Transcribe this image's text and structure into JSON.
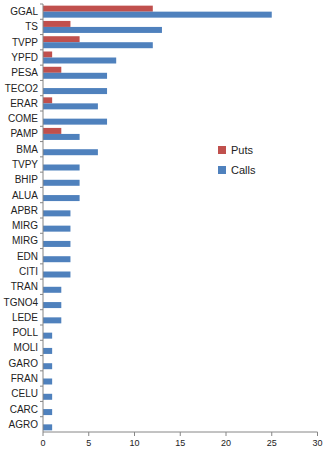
{
  "chart_data": {
    "type": "bar",
    "orientation": "horizontal",
    "categories": [
      "GGAL",
      "TS",
      "TVPP",
      "YPFD",
      "PESA",
      "TECO2",
      "ERAR",
      "COME",
      "PAMP",
      "BMA",
      "TVPY",
      "BHIP",
      "ALUA",
      "APBR",
      "MIRG",
      "MIRG",
      "EDN",
      "CITI",
      "TRAN",
      "TGNO4",
      "LEDE",
      "POLL",
      "MOLI",
      "GARO",
      "FRAN",
      "CELU",
      "CARC",
      "AGRO"
    ],
    "series": [
      {
        "name": "Puts",
        "color": "#c0504d",
        "values": [
          12,
          3,
          4,
          1,
          2,
          0,
          1,
          0,
          2,
          0,
          0,
          0,
          0,
          0,
          0,
          0,
          0,
          0,
          0,
          0,
          0,
          0,
          0,
          0,
          0,
          0,
          0,
          0
        ]
      },
      {
        "name": "Calls",
        "color": "#4f81bd",
        "values": [
          25,
          13,
          12,
          8,
          7,
          7,
          6,
          7,
          4,
          6,
          4,
          4,
          4,
          3,
          3,
          3,
          3,
          3,
          2,
          2,
          2,
          1,
          1,
          1,
          1,
          1,
          1,
          1
        ]
      }
    ],
    "xlim": [
      0,
      30
    ],
    "xticks": [
      0,
      5,
      10,
      15,
      20,
      25,
      30
    ],
    "grid": false,
    "legend": "right"
  }
}
